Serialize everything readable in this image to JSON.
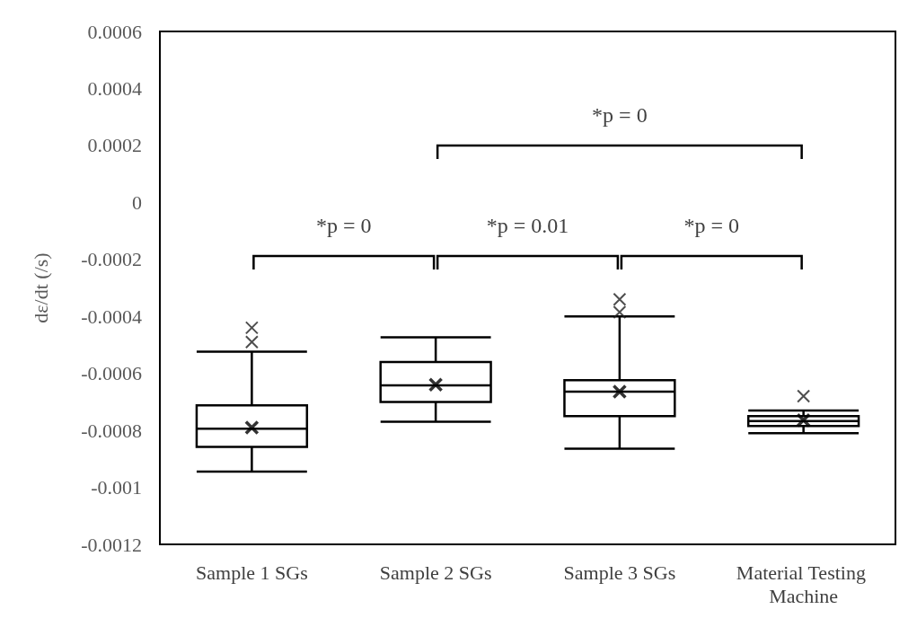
{
  "chart_data": {
    "type": "box",
    "ylabel": "dε/dt (/s)",
    "categories": [
      "Sample 1 SGs",
      "Sample 2 SGs",
      "Sample 3 SGs",
      "Material Testing Machine"
    ],
    "boxes": [
      {
        "low": -0.000945,
        "q1": -0.000858,
        "median": -0.000794,
        "q3": -0.000712,
        "high": -0.000524,
        "mean": -0.00079,
        "outliers": [
          -0.00044,
          -0.00049
        ]
      },
      {
        "low": -0.00077,
        "q1": -0.0007,
        "median": -0.000642,
        "q3": -0.00056,
        "high": -0.000473,
        "mean": -0.00064
      },
      {
        "low": -0.000864,
        "q1": -0.00075,
        "median": -0.000664,
        "q3": -0.000624,
        "high": -0.0004,
        "mean": -0.000664,
        "outliers": [
          -0.00034,
          -0.000385
        ]
      },
      {
        "low": -0.00081,
        "q1": -0.000785,
        "median": -0.000767,
        "q3": -0.00075,
        "high": -0.00073,
        "mean": -0.000764,
        "outliers": [
          -0.00068
        ]
      }
    ],
    "ylim": [
      -0.0012,
      0.0006
    ],
    "yticks": [
      -0.0012,
      -0.001,
      -0.0008,
      -0.0006,
      -0.0004,
      -0.0002,
      0,
      0.0002,
      0.0004,
      0.0006
    ],
    "grid": false,
    "marker": "cross",
    "annotations": [
      "*p = 0",
      "*p = 0",
      "*p = 0.01",
      "*p = 0"
    ]
  }
}
